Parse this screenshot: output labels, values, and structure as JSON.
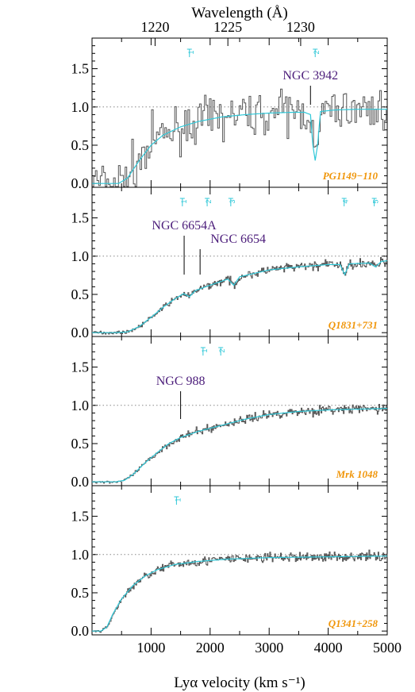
{
  "chart_data": {
    "type": "line",
    "x_label": "Lyα velocity (km s⁻¹)",
    "x_range": [
      0,
      5000
    ],
    "x_ticks": [
      "1000",
      "2000",
      "3000",
      "4000",
      "5000"
    ],
    "top_axis_title": "Wavelength (Å)",
    "top_axis_ticks": [
      "1220",
      "1225",
      "1230"
    ],
    "y_range": [
      -0.05,
      1.9
    ],
    "y_ticks": [
      "0.0",
      "0.5",
      "1.0",
      "1.5"
    ],
    "reference_line": 1.0,
    "colors": {
      "data": "#555555",
      "model": "#30c8d8",
      "galaxy_label": "#4b1c7a",
      "quasar_label": "#f0960a",
      "reference": "#888888"
    },
    "panels": [
      {
        "quasar": "PG1149−110",
        "noisy": true,
        "model": [
          [
            0,
            0
          ],
          [
            300,
            0
          ],
          [
            450,
            0
          ],
          [
            600,
            0.07
          ],
          [
            800,
            0.3
          ],
          [
            1000,
            0.5
          ],
          [
            1200,
            0.63
          ],
          [
            1500,
            0.74
          ],
          [
            1800,
            0.81
          ],
          [
            2200,
            0.87
          ],
          [
            2600,
            0.9
          ],
          [
            3000,
            0.92
          ],
          [
            3400,
            0.93
          ],
          [
            3600,
            0.93
          ],
          [
            3700,
            0.9
          ],
          [
            3740,
            0.5
          ],
          [
            3780,
            0.3
          ],
          [
            3820,
            0.5
          ],
          [
            3870,
            0.94
          ],
          [
            4100,
            0.96
          ],
          [
            4500,
            0.97
          ],
          [
            5000,
            0.97
          ]
        ],
        "markers": [
          {
            "label": "1",
            "v": 1650
          },
          {
            "label": "2",
            "v": 3780
          }
        ],
        "galaxies": [
          {
            "name": "NGC 3942",
            "v": 3700
          }
        ]
      },
      {
        "quasar": "Q1831+731",
        "noisy": false,
        "model": [
          [
            0,
            0
          ],
          [
            400,
            0
          ],
          [
            600,
            0.01
          ],
          [
            800,
            0.08
          ],
          [
            1000,
            0.2
          ],
          [
            1200,
            0.33
          ],
          [
            1400,
            0.44
          ],
          [
            1550,
            0.51
          ],
          [
            1650,
            0.47
          ],
          [
            1750,
            0.55
          ],
          [
            2000,
            0.62
          ],
          [
            2300,
            0.7
          ],
          [
            2400,
            0.62
          ],
          [
            2500,
            0.73
          ],
          [
            3000,
            0.82
          ],
          [
            3500,
            0.86
          ],
          [
            4000,
            0.89
          ],
          [
            4200,
            0.89
          ],
          [
            4280,
            0.76
          ],
          [
            4360,
            0.9
          ],
          [
            4700,
            0.91
          ],
          [
            4800,
            0.86
          ],
          [
            4900,
            0.93
          ],
          [
            5000,
            0.94
          ]
        ],
        "markers": [
          {
            "label": "1",
            "v": 1530
          },
          {
            "label": "2",
            "v": 1950
          },
          {
            "label": "3",
            "v": 2350
          },
          {
            "label": "4",
            "v": 4270
          },
          {
            "label": "5",
            "v": 4780
          }
        ],
        "galaxies": [
          {
            "name": "NGC 6654A",
            "v": 1560
          },
          {
            "name": "NGC 6654",
            "v": 1830
          }
        ]
      },
      {
        "quasar": "Mrk 1048",
        "noisy": false,
        "model": [
          [
            0,
            0
          ],
          [
            400,
            0
          ],
          [
            550,
            0.02
          ],
          [
            700,
            0.1
          ],
          [
            900,
            0.25
          ],
          [
            1100,
            0.38
          ],
          [
            1300,
            0.5
          ],
          [
            1500,
            0.58
          ],
          [
            1800,
            0.66
          ],
          [
            2200,
            0.74
          ],
          [
            2600,
            0.82
          ],
          [
            3000,
            0.88
          ],
          [
            3500,
            0.92
          ],
          [
            4000,
            0.94
          ],
          [
            4500,
            0.95
          ],
          [
            5000,
            0.96
          ]
        ],
        "markers": [
          {
            "label": "1",
            "v": 1880
          },
          {
            "label": "2",
            "v": 2180
          }
        ],
        "galaxies": [
          {
            "name": "NGC 988",
            "v": 1500
          }
        ]
      },
      {
        "quasar": "Q1341+258",
        "noisy": false,
        "model": [
          [
            0,
            0
          ],
          [
            150,
            0
          ],
          [
            250,
            0.05
          ],
          [
            350,
            0.22
          ],
          [
            500,
            0.42
          ],
          [
            700,
            0.6
          ],
          [
            900,
            0.72
          ],
          [
            1100,
            0.8
          ],
          [
            1400,
            0.87
          ],
          [
            1800,
            0.91
          ],
          [
            2300,
            0.94
          ],
          [
            3000,
            0.96
          ],
          [
            4000,
            0.97
          ],
          [
            5000,
            0.98
          ]
        ],
        "markers": [
          {
            "label": "1",
            "v": 1430
          }
        ],
        "galaxies": []
      }
    ]
  }
}
